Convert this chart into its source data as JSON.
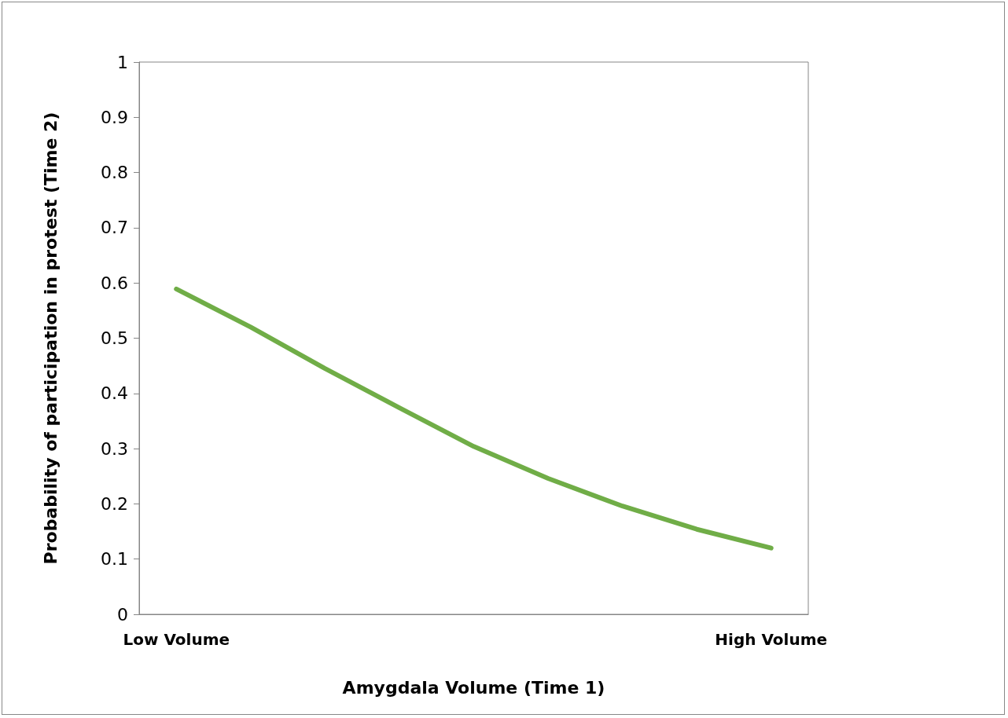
{
  "chart_data": {
    "type": "line",
    "xlabel": "Amygdala Volume (Time 1)",
    "ylabel": "Probability of participation in protest (Time 2)",
    "categories": [
      "Low Volume",
      null,
      null,
      null,
      null,
      null,
      null,
      null,
      "High Volume"
    ],
    "series": [
      {
        "color": "#70ad47",
        "values": [
          0.589,
          0.52,
          0.445,
          0.374,
          0.304,
          0.246,
          0.196,
          0.154,
          0.12
        ]
      }
    ],
    "ylim": [
      0,
      1
    ],
    "yticks": [
      0,
      0.1,
      0.2,
      0.3,
      0.4,
      0.5,
      0.6,
      0.7,
      0.8,
      0.9,
      1
    ],
    "grid": false,
    "marker": "none",
    "line_style": "solid"
  }
}
